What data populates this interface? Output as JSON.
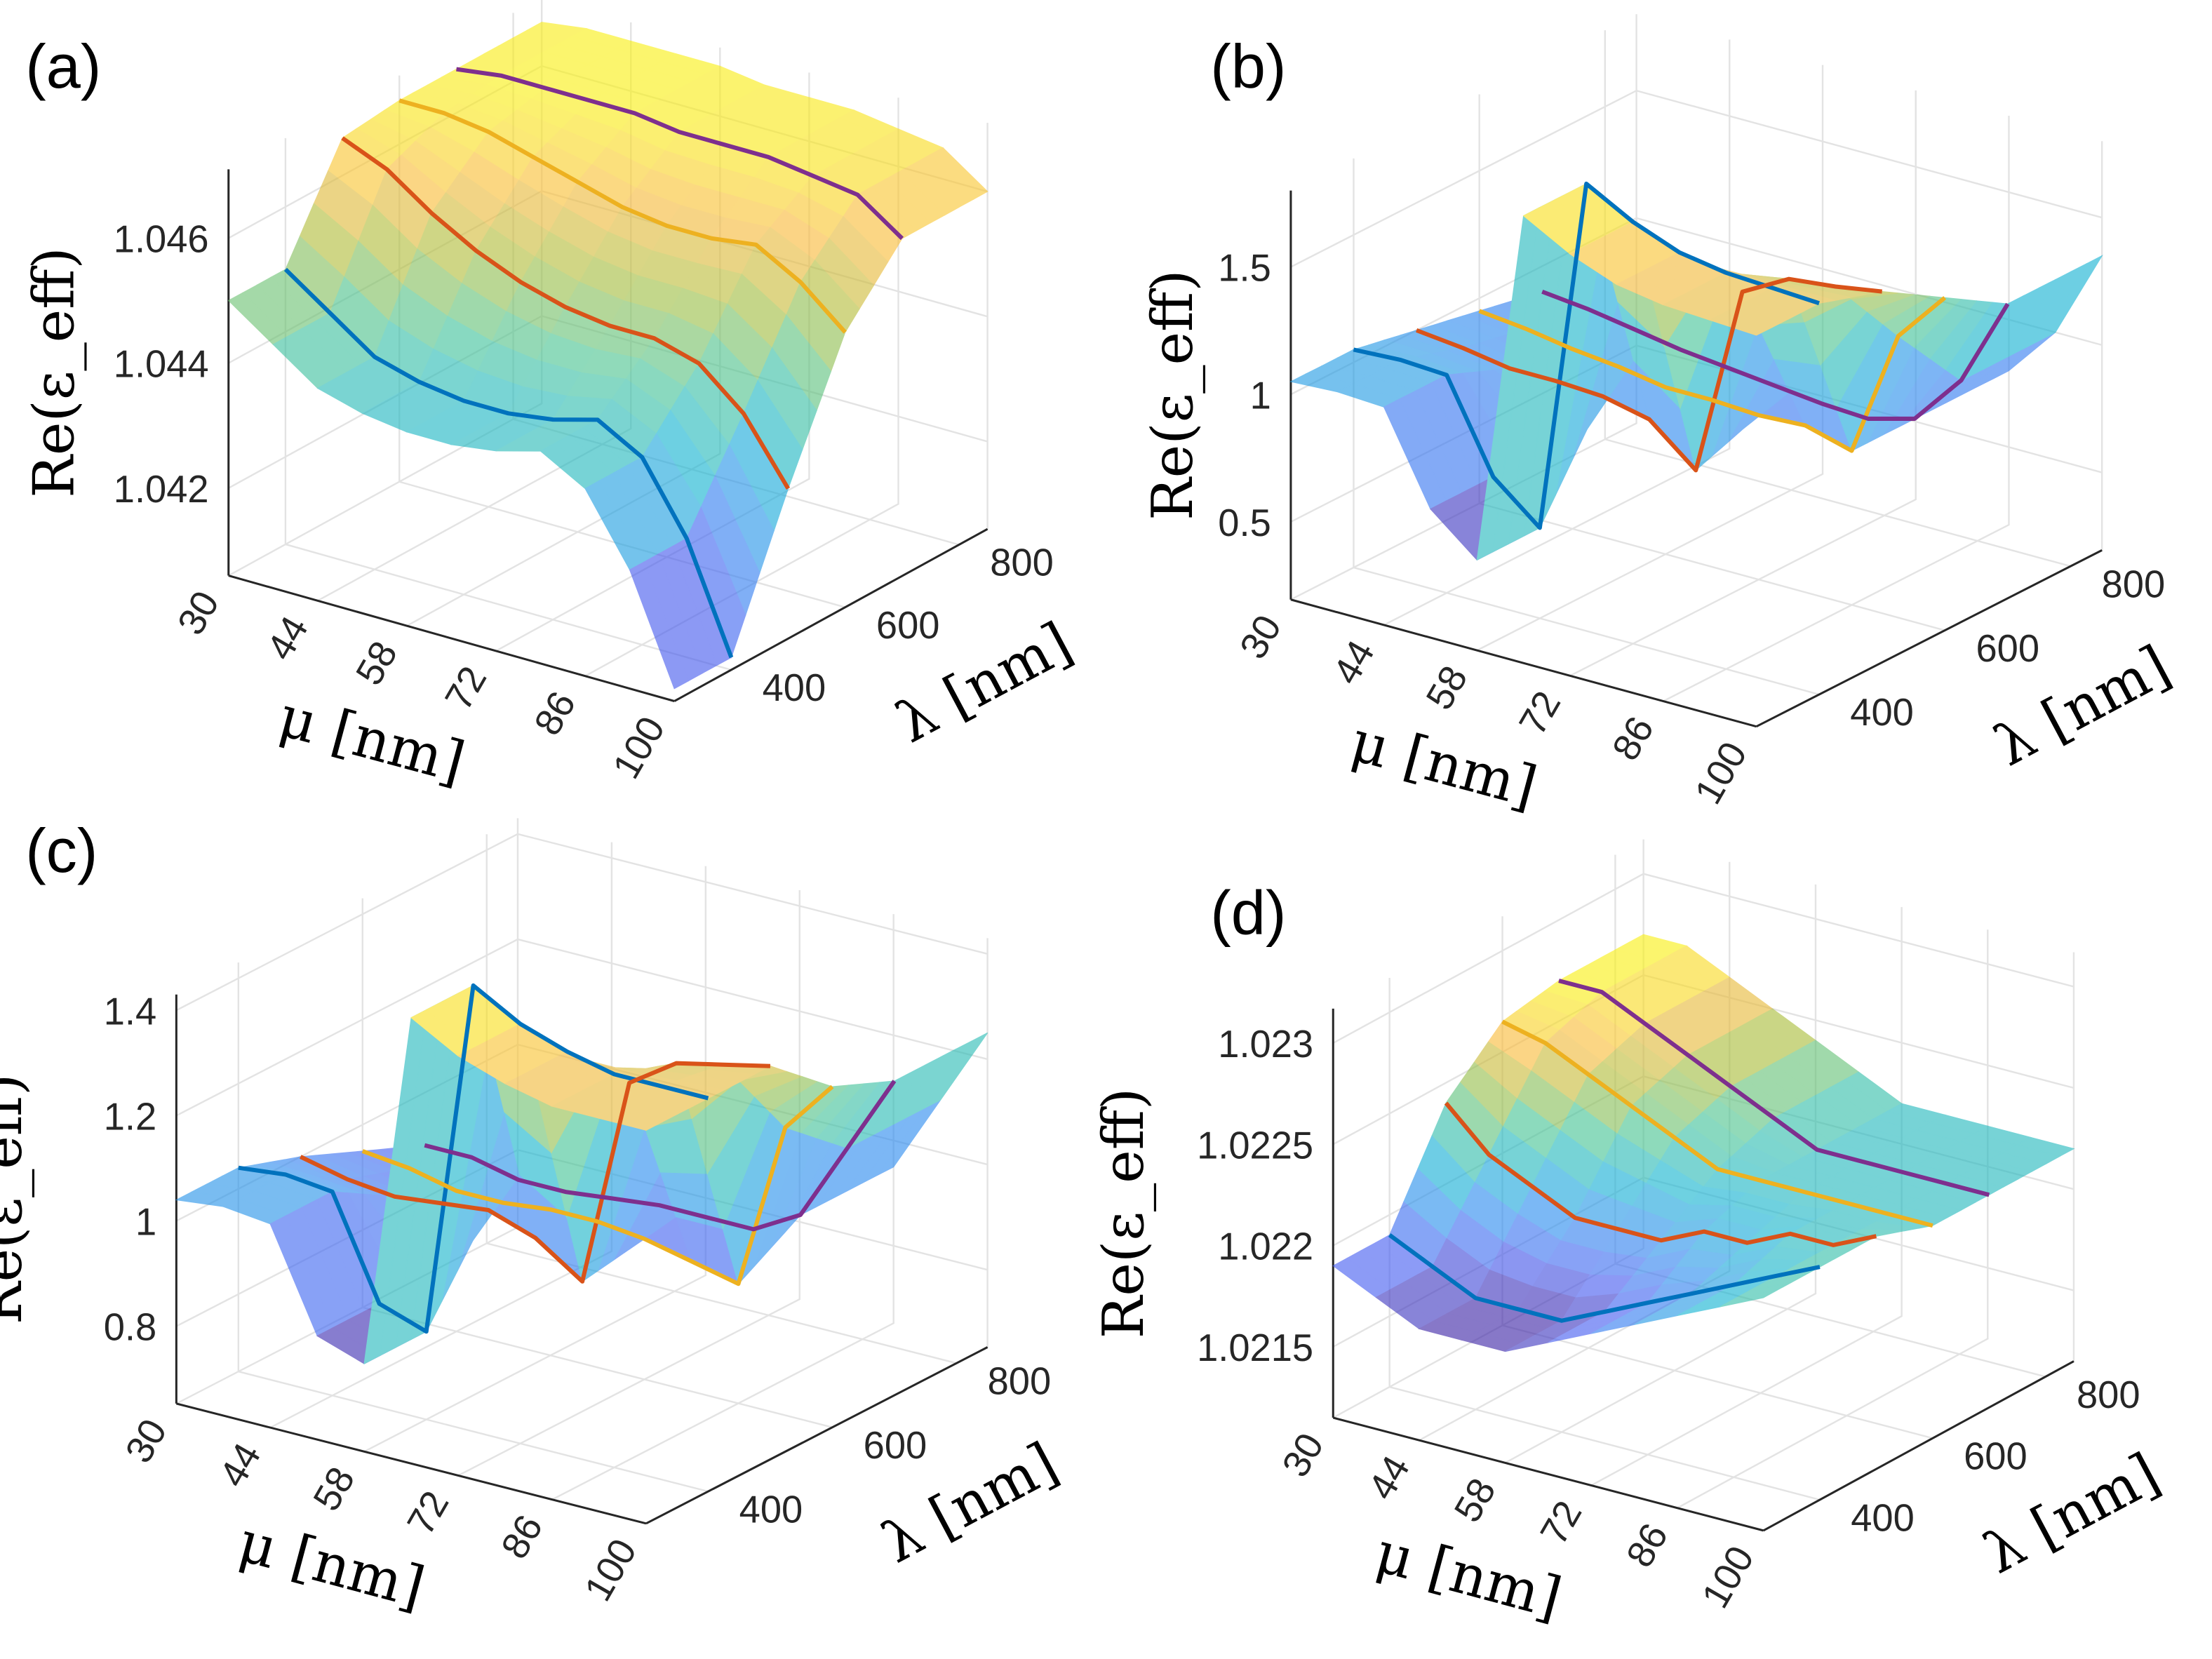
{
  "chart_data": [
    {
      "panel": "(a)",
      "type": "surface",
      "xlabel": "μ [nm]",
      "ylabel": "λ [nm]",
      "zlabel": "Re(ε_eff)",
      "mu_ticks": [
        30,
        44,
        58,
        72,
        86,
        100
      ],
      "mu_tick_labels": [
        "30",
        "44",
        "58",
        "72",
        "86",
        "100"
      ],
      "lambda_ticks": [
        400,
        600,
        800
      ],
      "lambda_tick_labels": [
        "400",
        "600",
        "800"
      ],
      "z_ticks": [
        1.042,
        1.044,
        1.046
      ],
      "z_tick_labels": [
        "1.042",
        "1.044",
        "1.046"
      ],
      "xlim": [
        30,
        100
      ],
      "ylim": [
        300,
        850
      ],
      "zlim": [
        1.0406,
        1.0471
      ],
      "mu": [
        30,
        37,
        44,
        51,
        58,
        65,
        72,
        79,
        86,
        93,
        100
      ],
      "series": [
        {
          "name": "λ=400",
          "lambda": 400,
          "color": "#0072BD",
          "values": [
            1.045,
            1.0445,
            1.044,
            1.0438,
            1.0437,
            1.0437,
            1.0438,
            1.044,
            1.0436,
            1.0425,
            1.0408
          ]
        },
        {
          "name": "λ=500",
          "lambda": 500,
          "color": "#D95319",
          "values": [
            1.0466,
            1.0463,
            1.0458,
            1.0454,
            1.0451,
            1.0449,
            1.0448,
            1.0448,
            1.0446,
            1.044,
            1.043
          ]
        },
        {
          "name": "λ=600",
          "lambda": 600,
          "color": "#EDB120",
          "values": [
            1.0467,
            1.0467,
            1.0466,
            1.0464,
            1.0462,
            1.046,
            1.0459,
            1.0459,
            1.046,
            1.0456,
            1.045
          ]
        },
        {
          "name": "λ=700",
          "lambda": 700,
          "color": "#7E2F8E",
          "values": [
            1.0467,
            1.0468,
            1.0468,
            1.0468,
            1.0468,
            1.0467,
            1.0467,
            1.0467,
            1.0466,
            1.0465,
            1.046
          ]
        }
      ]
    },
    {
      "panel": "(b)",
      "type": "surface",
      "xlabel": "μ [nm]",
      "ylabel": "λ [nm]",
      "zlabel": "Re(ε_eff)",
      "mu_ticks": [
        30,
        44,
        58,
        72,
        86,
        100
      ],
      "mu_tick_labels": [
        "30",
        "44",
        "58",
        "72",
        "86",
        "100"
      ],
      "lambda_ticks": [
        400,
        600,
        800
      ],
      "lambda_tick_labels": [
        "400",
        "600",
        "800"
      ],
      "z_ticks": [
        0.5,
        1,
        1.5
      ],
      "z_tick_labels": [
        "0.5",
        "1",
        "1.5"
      ],
      "xlim": [
        30,
        100
      ],
      "ylim": [
        300,
        850
      ],
      "zlim": [
        0.195,
        1.8
      ],
      "mu": [
        30,
        37,
        44,
        51,
        58,
        65,
        72,
        79,
        86,
        93,
        100
      ],
      "series": [
        {
          "name": "λ=400",
          "lambda": 400,
          "color": "#0072BD",
          "values": [
            1.05,
            1.06,
            1.05,
            0.7,
            0.55,
            1.95,
            1.85,
            1.78,
            1.75,
            1.74,
            1.73
          ]
        },
        {
          "name": "λ=500",
          "lambda": 500,
          "color": "#D95319",
          "values": [
            1.0,
            0.98,
            0.95,
            0.95,
            0.94,
            0.9,
            0.75,
            1.5,
            1.6,
            1.62,
            1.65
          ]
        },
        {
          "name": "λ=600",
          "lambda": 600,
          "color": "#EDB120",
          "values": [
            0.95,
            0.93,
            0.9,
            0.88,
            0.85,
            0.85,
            0.84,
            0.85,
            0.8,
            1.3,
            1.5
          ]
        },
        {
          "name": "λ=700",
          "lambda": 700,
          "color": "#7E2F8E",
          "values": [
            0.9,
            0.88,
            0.85,
            0.82,
            0.8,
            0.78,
            0.76,
            0.75,
            0.8,
            1.0,
            1.35
          ]
        }
      ]
    },
    {
      "panel": "(c)",
      "type": "surface",
      "xlabel": "μ [nm]",
      "ylabel": "λ [nm]",
      "zlabel": "Re(ε_eff)",
      "mu_ticks": [
        30,
        44,
        58,
        72,
        86,
        100
      ],
      "mu_tick_labels": [
        "30",
        "44",
        "58",
        "72",
        "86",
        "100"
      ],
      "lambda_ticks": [
        400,
        600,
        800
      ],
      "lambda_tick_labels": [
        "400",
        "600",
        "800"
      ],
      "z_ticks": [
        0.8,
        1,
        1.2,
        1.4
      ],
      "z_tick_labels": [
        "0.8",
        "1",
        "1.2",
        "1.4"
      ],
      "xlim": [
        30,
        100
      ],
      "ylim": [
        300,
        850
      ],
      "zlim": [
        0.653,
        1.43
      ],
      "mu": [
        30,
        37,
        44,
        51,
        58,
        65,
        72,
        79,
        86,
        93,
        100
      ],
      "series": [
        {
          "name": "λ=400",
          "lambda": 400,
          "color": "#0072BD",
          "values": [
            1.04,
            1.05,
            1.04,
            0.85,
            0.82,
            1.5,
            1.45,
            1.42,
            1.4,
            1.4,
            1.4
          ]
        },
        {
          "name": "λ=500",
          "lambda": 500,
          "color": "#D95319",
          "values": [
            1.0,
            0.98,
            0.97,
            0.98,
            0.99,
            0.96,
            0.9,
            1.3,
            1.36,
            1.38,
            1.4
          ]
        },
        {
          "name": "λ=600",
          "lambda": 600,
          "color": "#EDB120",
          "values": [
            0.95,
            0.94,
            0.92,
            0.92,
            0.93,
            0.93,
            0.92,
            0.9,
            0.88,
            1.2,
            1.3
          ]
        },
        {
          "name": "λ=700",
          "lambda": 700,
          "color": "#7E2F8E",
          "values": [
            0.9,
            0.9,
            0.88,
            0.88,
            0.89,
            0.9,
            0.9,
            0.9,
            0.95,
            1.1,
            1.25
          ]
        }
      ]
    },
    {
      "panel": "(d)",
      "type": "surface",
      "xlabel": "μ [nm]",
      "ylabel": "λ [nm]",
      "zlabel": "Re(ε_eff)",
      "mu_ticks": [
        30,
        44,
        58,
        72,
        86,
        100
      ],
      "mu_tick_labels": [
        "30",
        "44",
        "58",
        "72",
        "86",
        "100"
      ],
      "lambda_ticks": [
        400,
        600,
        800
      ],
      "lambda_tick_labels": [
        "400",
        "600",
        "800"
      ],
      "z_ticks": [
        1.0215,
        1.022,
        1.0225,
        1.023
      ],
      "z_tick_labels": [
        "1.0215",
        "1.022",
        "1.0225",
        "1.023"
      ],
      "xlim": [
        30,
        100
      ],
      "ylim": [
        300,
        850
      ],
      "zlim": [
        1.02115,
        1.02317
      ],
      "mu": [
        30,
        37,
        44,
        51,
        58,
        65,
        72,
        79,
        86,
        93,
        100
      ],
      "series": [
        {
          "name": "λ=400",
          "lambda": 400,
          "color": "#0072BD",
          "values": [
            1.0219,
            1.0218,
            1.0217,
            1.0217,
            1.0217,
            1.0218,
            1.0219,
            1.022,
            1.0221,
            1.0222,
            1.0223
          ]
        },
        {
          "name": "λ=500",
          "lambda": 500,
          "color": "#D95319",
          "values": [
            1.0224,
            1.0222,
            1.0221,
            1.022,
            1.022,
            1.022,
            1.0221,
            1.0221,
            1.0222,
            1.0222,
            1.0223
          ]
        },
        {
          "name": "λ=600",
          "lambda": 600,
          "color": "#EDB120",
          "values": [
            1.02265,
            1.0226,
            1.0225,
            1.0224,
            1.0223,
            1.0222,
            1.0222,
            1.0222,
            1.0222,
            1.0222,
            1.0222
          ]
        },
        {
          "name": "λ=700",
          "lambda": 700,
          "color": "#7E2F8E",
          "values": [
            1.0227,
            1.0227,
            1.0226,
            1.0225,
            1.0224,
            1.0223,
            1.0222,
            1.0222,
            1.0222,
            1.0222,
            1.0222
          ]
        }
      ]
    }
  ]
}
